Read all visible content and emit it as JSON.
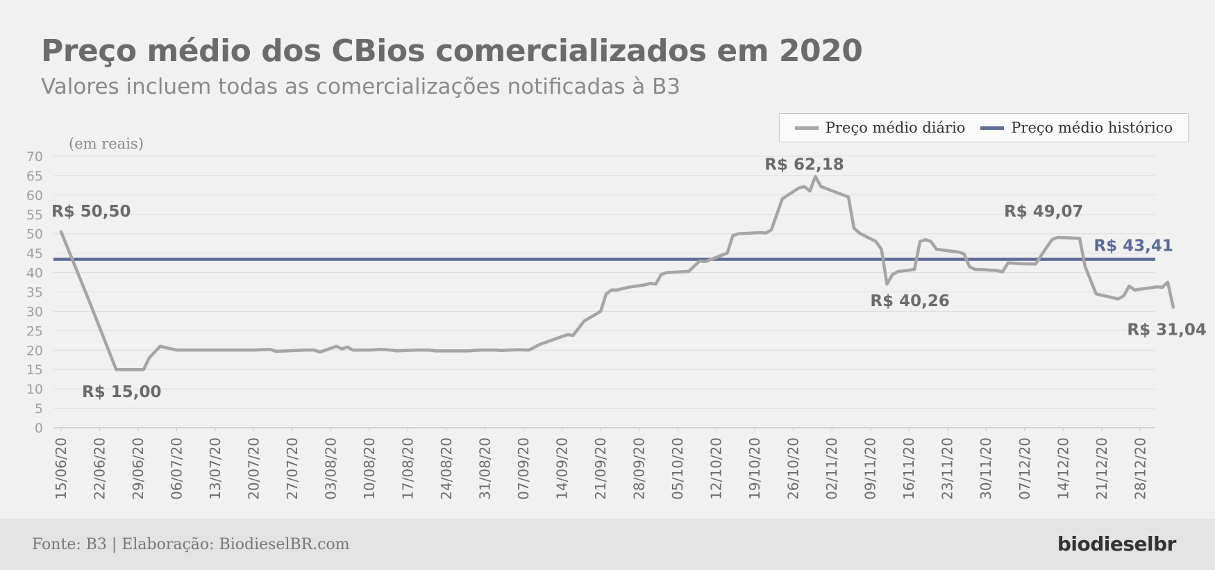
{
  "title": "Preço médio dos CBios comercializados em 2020",
  "subtitle": "Valores incluem todas as comercializações notificadas à B3",
  "footer": {
    "source": "Fonte: B3 | Elaboração: BiodieselBR.com",
    "logo": "biodieselbr"
  },
  "legend": {
    "daily_label": "Preço médio diário",
    "historic_label": "Preço médio histórico"
  },
  "colors": {
    "daily": "#a5a5a5",
    "historic": "#5a6b94",
    "text_dark": "#6b6b6b",
    "grid": "#dcdcdc"
  },
  "chart_data": {
    "type": "line",
    "unit_note": "(em reais)",
    "ylim": [
      0,
      70
    ],
    "yticks": [
      0,
      5,
      10,
      15,
      20,
      25,
      30,
      35,
      40,
      45,
      50,
      55,
      60,
      65,
      70
    ],
    "xlim": [
      "15/06/20",
      "03/01/21"
    ],
    "x_tick_labels": [
      "15/06/20",
      "22/06/20",
      "29/06/20",
      "06/07/20",
      "13/07/20",
      "20/07/20",
      "27/07/20",
      "03/08/20",
      "10/08/20",
      "17/08/20",
      "24/08/20",
      "31/08/20",
      "07/09/20",
      "14/09/20",
      "21/09/20",
      "28/09/20",
      "05/10/20",
      "12/10/20",
      "19/10/20",
      "26/10/20",
      "02/11/20",
      "09/11/20",
      "16/11/20",
      "23/11/20",
      "30/11/20",
      "07/12/20",
      "14/12/20",
      "21/12/20",
      "28/12/20"
    ],
    "grid": true,
    "legend_position": "top-right",
    "series": [
      {
        "name": "Preço médio diário",
        "points": [
          [
            "15/06/20",
            50.5
          ],
          [
            "20/06/20",
            33.0
          ],
          [
            "25/06/20",
            15.0
          ],
          [
            "26/06/20",
            15.0
          ],
          [
            "30/06/20",
            15.0
          ],
          [
            "01/07/20",
            18.0
          ],
          [
            "03/07/20",
            21.0
          ],
          [
            "06/07/20",
            20.0
          ],
          [
            "13/07/20",
            20.0
          ],
          [
            "20/07/20",
            20.0
          ],
          [
            "23/07/20",
            20.2
          ],
          [
            "24/07/20",
            19.7
          ],
          [
            "26/07/20",
            19.8
          ],
          [
            "29/07/20",
            20.0
          ],
          [
            "31/07/20",
            20.0
          ],
          [
            "01/08/20",
            19.5
          ],
          [
            "04/08/20",
            21.0
          ],
          [
            "05/08/20",
            20.3
          ],
          [
            "06/08/20",
            20.8
          ],
          [
            "07/08/20",
            20.0
          ],
          [
            "10/08/20",
            20.0
          ],
          [
            "12/08/20",
            20.2
          ],
          [
            "14/08/20",
            20.0
          ],
          [
            "15/08/20",
            19.8
          ],
          [
            "18/08/20",
            20.0
          ],
          [
            "21/08/20",
            20.0
          ],
          [
            "22/08/20",
            19.8
          ],
          [
            "28/08/20",
            19.8
          ],
          [
            "30/08/20",
            20.0
          ],
          [
            "02/09/20",
            20.0
          ],
          [
            "03/09/20",
            19.9
          ],
          [
            "06/09/20",
            20.1
          ],
          [
            "08/09/20",
            20.0
          ],
          [
            "10/09/20",
            21.5
          ],
          [
            "11/09/20",
            22.0
          ],
          [
            "15/09/20",
            24.0
          ],
          [
            "16/09/20",
            23.8
          ],
          [
            "18/09/20",
            27.5
          ],
          [
            "21/09/20",
            30.0
          ],
          [
            "22/09/20",
            34.5
          ],
          [
            "23/09/20",
            35.5
          ],
          [
            "24/09/20",
            35.5
          ],
          [
            "26/09/20",
            36.2
          ],
          [
            "29/09/20",
            36.8
          ],
          [
            "30/09/20",
            37.2
          ],
          [
            "01/10/20",
            37.0
          ],
          [
            "02/10/20",
            39.5
          ],
          [
            "03/10/20",
            40.0
          ],
          [
            "07/10/20",
            40.3
          ],
          [
            "09/10/20",
            43.0
          ],
          [
            "10/10/20",
            42.8
          ],
          [
            "14/10/20",
            45.0
          ],
          [
            "15/10/20",
            49.5
          ],
          [
            "16/10/20",
            50.0
          ],
          [
            "20/10/20",
            50.3
          ],
          [
            "21/10/20",
            50.2
          ],
          [
            "22/10/20",
            51.0
          ],
          [
            "24/10/20",
            59.0
          ],
          [
            "27/10/20",
            61.8
          ],
          [
            "28/10/20",
            62.18
          ],
          [
            "29/10/20",
            61.0
          ],
          [
            "30/10/20",
            64.8
          ],
          [
            "31/10/20",
            62.2
          ],
          [
            "05/11/20",
            59.5
          ],
          [
            "06/11/20",
            51.5
          ],
          [
            "07/11/20",
            50.2
          ],
          [
            "10/11/20",
            48.0
          ],
          [
            "11/11/20",
            46.0
          ],
          [
            "12/11/20",
            37.0
          ],
          [
            "13/11/20",
            39.5
          ],
          [
            "14/11/20",
            40.26
          ],
          [
            "17/11/20",
            40.8
          ],
          [
            "18/11/20",
            48.0
          ],
          [
            "19/11/20",
            48.5
          ],
          [
            "20/11/20",
            48.0
          ],
          [
            "21/11/20",
            46.0
          ],
          [
            "25/11/20",
            45.3
          ],
          [
            "26/11/20",
            44.8
          ],
          [
            "27/11/20",
            41.5
          ],
          [
            "28/11/20",
            40.8
          ],
          [
            "29/11/20",
            40.8
          ],
          [
            "02/12/20",
            40.5
          ],
          [
            "03/12/20",
            40.2
          ],
          [
            "04/12/20",
            42.5
          ],
          [
            "06/12/20",
            42.3
          ],
          [
            "09/12/20",
            42.2
          ],
          [
            "11/12/20",
            46.5
          ],
          [
            "12/12/20",
            48.5
          ],
          [
            "13/12/20",
            49.07
          ],
          [
            "17/12/20",
            48.8
          ],
          [
            "18/12/20",
            41.5
          ],
          [
            "20/12/20",
            34.5
          ],
          [
            "24/12/20",
            33.2
          ],
          [
            "25/12/20",
            34.0
          ],
          [
            "26/12/20",
            36.5
          ],
          [
            "27/12/20",
            35.5
          ],
          [
            "31/12/20",
            36.3
          ],
          [
            "01/01/21",
            36.2
          ],
          [
            "02/01/21",
            37.5
          ],
          [
            "03/01/21",
            31.04
          ]
        ]
      },
      {
        "name": "Preço médio histórico",
        "constant": 43.41
      }
    ],
    "annotations": [
      {
        "text": "R$ 50,50",
        "at": [
          "15/06/20",
          50.5
        ],
        "anchor": "start",
        "dx": -14,
        "dy": -22,
        "color": "#6b6b6b"
      },
      {
        "text": "R$ 15,00",
        "at": [
          "26/06/20",
          15.0
        ],
        "anchor": "middle",
        "dx": 0,
        "dy": 40,
        "color": "#6b6b6b"
      },
      {
        "text": "R$ 62,18",
        "at": [
          "28/10/20",
          62.18
        ],
        "anchor": "middle",
        "dx": 0,
        "dy": -24,
        "color": "#6b6b6b"
      },
      {
        "text": "R$ 40,26",
        "at": [
          "14/11/20",
          40.26
        ],
        "anchor": "start",
        "dx": -40,
        "dy": 50,
        "color": "#6b6b6b"
      },
      {
        "text": "R$ 49,07",
        "at": [
          "13/12/20",
          49.07
        ],
        "anchor": "middle",
        "dx": -20,
        "dy": -30,
        "color": "#6b6b6b"
      },
      {
        "text": "R$ 31,04",
        "at": [
          "03/01/21",
          31.04
        ],
        "anchor": "end",
        "dx": 48,
        "dy": 40,
        "color": "#6b6b6b"
      },
      {
        "text": "R$ 43,41",
        "at": [
          "03/01/21",
          43.41
        ],
        "anchor": "end",
        "dx": 0,
        "dy": -12,
        "color": "#5a6b94"
      }
    ]
  }
}
